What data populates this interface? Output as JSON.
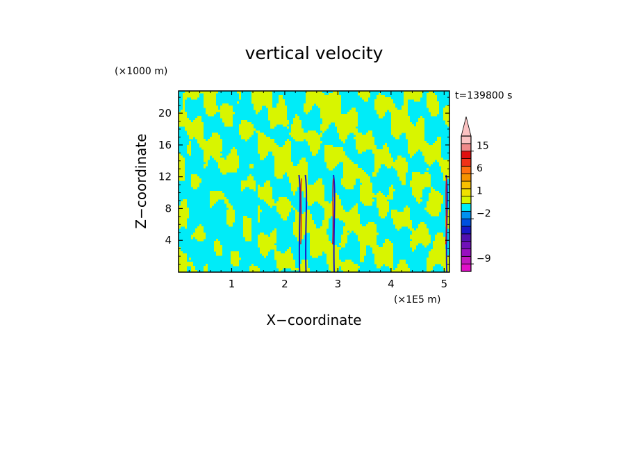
{
  "chart_data": {
    "type": "heatmap",
    "title": "vertical velocity",
    "xlabel": "X−coordinate",
    "ylabel": "Z−coordinate",
    "x_unit": "(×1E5 m)",
    "y_unit": "(×1000 m)",
    "time_label": "t=139800 s",
    "xlim": [
      0,
      5.1
    ],
    "ylim": [
      0,
      22.8
    ],
    "x_ticks": [
      {
        "value": 1,
        "label": "1"
      },
      {
        "value": 2,
        "label": "2"
      },
      {
        "value": 3,
        "label": "3"
      },
      {
        "value": 4,
        "label": "4"
      },
      {
        "value": 5,
        "label": "5"
      }
    ],
    "y_ticks": [
      {
        "value": 4,
        "label": "4"
      },
      {
        "value": 8,
        "label": "8"
      },
      {
        "value": 12,
        "label": "12"
      },
      {
        "value": 16,
        "label": "16"
      },
      {
        "value": 20,
        "label": "20"
      }
    ],
    "colorbar": {
      "extend_top": true,
      "levels": [
        {
          "lo": -10,
          "hi": -9,
          "color": "#e010c8"
        },
        {
          "lo": -9,
          "hi": -8,
          "color": "#c018c0"
        },
        {
          "lo": -8,
          "hi": -7,
          "color": "#9810c0"
        },
        {
          "lo": -7,
          "hi": -6,
          "color": "#7010b8"
        },
        {
          "lo": -6,
          "hi": -5,
          "color": "#5010b0"
        },
        {
          "lo": -5,
          "hi": -3,
          "color": "#1818c8"
        },
        {
          "lo": -3,
          "hi": -2,
          "color": "#0050e0"
        },
        {
          "lo": -2,
          "hi": -1,
          "color": "#0090f0"
        },
        {
          "lo": -1,
          "hi": 0,
          "color": "#00ecf8"
        },
        {
          "lo": 0,
          "hi": 1,
          "color": "#d8f500"
        },
        {
          "lo": 1,
          "hi": 2,
          "color": "#f0e000"
        },
        {
          "lo": 2,
          "hi": 3,
          "color": "#f8c000"
        },
        {
          "lo": 3,
          "hi": 6,
          "color": "#f59200"
        },
        {
          "lo": 6,
          "hi": 9,
          "color": "#ff7010"
        },
        {
          "lo": 9,
          "hi": 12,
          "color": "#f03218"
        },
        {
          "lo": 12,
          "hi": 15,
          "color": "#e01010"
        },
        {
          "lo": 15,
          "hi": 18,
          "color": "#f08a8a"
        },
        {
          "lo": 18,
          "hi": 30,
          "color": "#fbc2c2"
        }
      ],
      "labels": [
        {
          "value": 15,
          "label": "15"
        },
        {
          "value": 6,
          "label": "6"
        },
        {
          "value": 1,
          "label": "1"
        },
        {
          "value": -2,
          "label": "−2"
        },
        {
          "value": -9,
          "label": "−9"
        }
      ]
    },
    "field_colors": {
      "positive": "#d8f500",
      "negative": "#00ecf8",
      "strong_negative": "#1818c8",
      "strong_positive": "#e01010"
    },
    "strong_updraft_columns_x": [
      2.3,
      2.9,
      5.03
    ],
    "strong_downdraft_columns_x": [
      2.28,
      2.4,
      2.93,
      5.05
    ]
  }
}
